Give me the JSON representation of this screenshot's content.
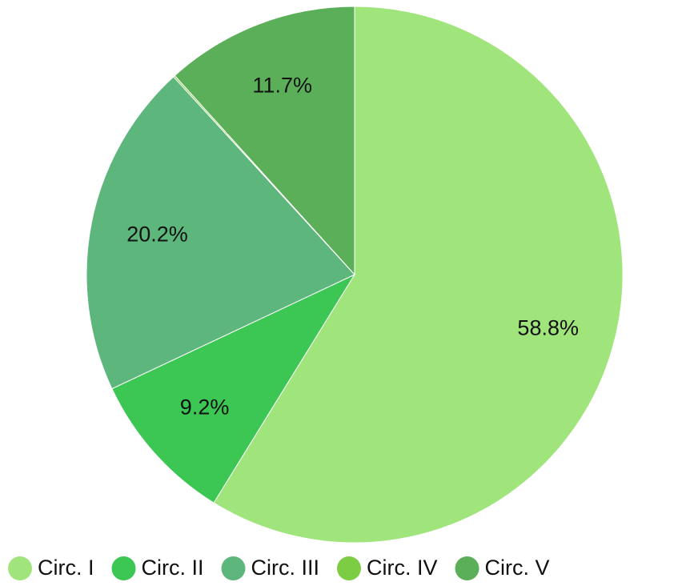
{
  "chart_data": {
    "type": "pie",
    "categories": [
      "Circ. I",
      "Circ. II",
      "Circ. III",
      "Circ. IV",
      "Circ. V"
    ],
    "values": [
      58.8,
      9.2,
      20.2,
      0.1,
      11.7
    ],
    "value_labels": [
      "58.8%",
      "9.2%",
      "20.2%",
      null,
      "11.7%"
    ],
    "colors": [
      "#a0e57c",
      "#3cc653",
      "#5db67b",
      "#7ccc44",
      "#5aaf58"
    ],
    "legend": "bottom"
  }
}
